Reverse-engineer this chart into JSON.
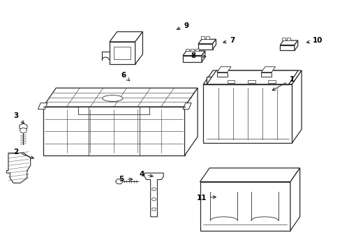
{
  "bg_color": "#ffffff",
  "line_color": "#2a2a2a",
  "label_color": "#000000",
  "lw": 0.9,
  "figsize": [
    4.9,
    3.6
  ],
  "dpi": 100,
  "labels": {
    "1": [
      0.855,
      0.685,
      0.79,
      0.635,
      "left"
    ],
    "2": [
      0.045,
      0.395,
      0.105,
      0.365,
      "right"
    ],
    "3": [
      0.045,
      0.54,
      0.075,
      0.5,
      "right"
    ],
    "4": [
      0.415,
      0.305,
      0.455,
      0.295,
      "left"
    ],
    "5": [
      0.355,
      0.285,
      0.395,
      0.285,
      "left"
    ],
    "6": [
      0.36,
      0.7,
      0.385,
      0.672,
      "left"
    ],
    "7": [
      0.68,
      0.84,
      0.645,
      0.83,
      "right"
    ],
    "8": [
      0.565,
      0.78,
      0.61,
      0.775,
      "right"
    ],
    "9": [
      0.545,
      0.9,
      0.51,
      0.88,
      "right"
    ],
    "10": [
      0.93,
      0.84,
      0.89,
      0.83,
      "right"
    ],
    "11": [
      0.59,
      0.21,
      0.64,
      0.215,
      "right"
    ]
  }
}
